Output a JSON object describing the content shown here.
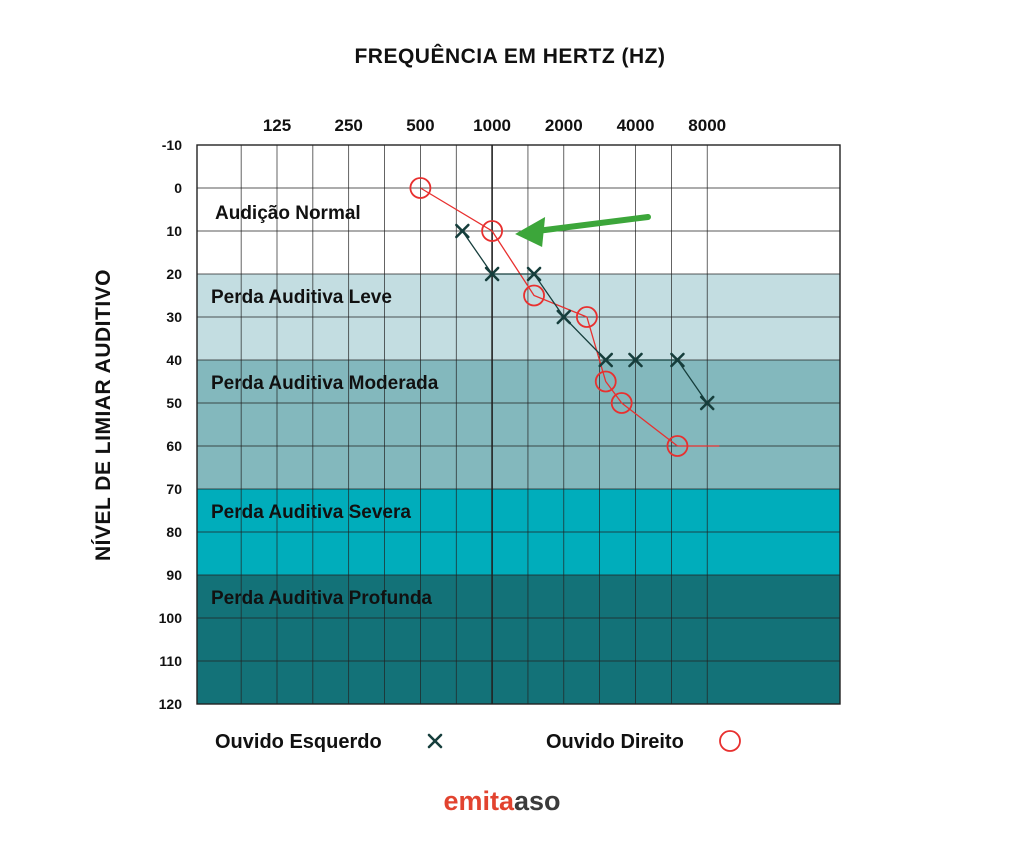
{
  "chart_data": {
    "type": "line",
    "title": "FREQUÊNCIA EM HERTZ (HZ)",
    "ylabel": "NÍVEL DE LIMIAR AUDITIVO",
    "xlabel": "",
    "x_tick_labels": [
      {
        "label": "125",
        "freq": 125
      },
      {
        "label": "250",
        "freq": 250
      },
      {
        "label": "500",
        "freq": 500
      },
      {
        "label": "1000",
        "freq": 1000
      },
      {
        "label": "2000",
        "freq": 2000
      },
      {
        "label": "4000",
        "freq": 4000
      },
      {
        "label": "8000",
        "freq": 8000
      }
    ],
    "y_ticks": [
      -10,
      0,
      10,
      20,
      30,
      40,
      50,
      60,
      70,
      80,
      90,
      100,
      110,
      120
    ],
    "ylim": [
      -10,
      120
    ],
    "y_inverted": true,
    "zones": [
      {
        "label": "Audição Normal",
        "from": -10,
        "to": 20,
        "color": "#ffffff"
      },
      {
        "label": "Perda Auditiva Leve",
        "from": 20,
        "to": 40,
        "color": "#c3dde1"
      },
      {
        "label": "Perda Auditiva Moderada",
        "from": 40,
        "to": 70,
        "color": "#83b8bd"
      },
      {
        "label": "Perda Auditiva Severa",
        "from": 70,
        "to": 90,
        "color": "#00adbb"
      },
      {
        "label": "Perda Auditiva Profunda",
        "from": 90,
        "to": 120,
        "color": "#137278"
      }
    ],
    "series": [
      {
        "name": "Ouvido Esquerdo",
        "marker": "x",
        "color": "#163e3c",
        "points": [
          {
            "freq": 750,
            "db": 10
          },
          {
            "freq": 1000,
            "db": 20
          },
          {
            "freq": 1500,
            "db": 20
          },
          {
            "freq": 2000,
            "db": 30
          },
          {
            "freq": 3000,
            "db": 40
          },
          {
            "freq": 4000,
            "db": 40
          },
          {
            "freq": 6000,
            "db": 40
          },
          {
            "freq": 8000,
            "db": 50
          }
        ]
      },
      {
        "name": "Ouvido Direito",
        "marker": "o",
        "color": "#e8302f",
        "points": [
          {
            "freq": 500,
            "db": 0
          },
          {
            "freq": 1000,
            "db": 10
          },
          {
            "freq": 1500,
            "db": 25
          },
          {
            "freq": 2500,
            "db": 30
          },
          {
            "freq": 3000,
            "db": 45
          },
          {
            "freq": 3500,
            "db": 50
          },
          {
            "freq": 6000,
            "db": 60
          }
        ],
        "tail_to_freq": 9000
      }
    ],
    "annotation": {
      "type": "arrow",
      "color": "#3ca63a",
      "target": {
        "freq": 1000,
        "db": 10
      }
    }
  },
  "brand": {
    "part1": "emita",
    "part2": "aso",
    "color1": "#e2432f",
    "color2": "#3b3b3b"
  }
}
